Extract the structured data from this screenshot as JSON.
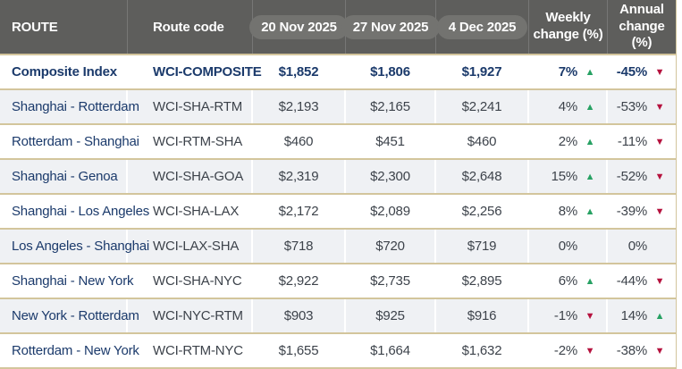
{
  "header": {
    "route": "ROUTE",
    "route_code": "Route code",
    "dates": [
      "20 Nov 2025",
      "27 Nov 2025",
      "4 Dec 2025"
    ],
    "weekly_line1": "Weekly",
    "weekly_line2": "change (%)",
    "annual_line1": "Annual",
    "annual_line2": "change (%)"
  },
  "colors": {
    "header_bg": "#5e5e5c",
    "date_pill_bg": "#737370",
    "separator_gold": "#d3c59c",
    "alt_row_bg": "#eff1f4",
    "navy_text": "#1b3a6b",
    "slate_text": "#3d434b",
    "trend_up_green": "#27a163",
    "trend_down_red": "#b5123e"
  },
  "chart_data": {
    "type": "table",
    "columns": [
      "ROUTE",
      "Route code",
      "20 Nov 2025",
      "27 Nov 2025",
      "4 Dec 2025",
      "Weekly change (%)",
      "Annual change (%)"
    ],
    "rows": [
      {
        "route": "Composite Index",
        "code": "WCI-COMPOSITE",
        "prices": [
          "$1,852",
          "$1,806",
          "$1,927"
        ],
        "weekly": {
          "value": "7%",
          "trend": "up"
        },
        "annual": {
          "value": "-45%",
          "trend": "down"
        },
        "emphasis": true
      },
      {
        "route": "Shanghai - Rotterdam",
        "code": "WCI-SHA-RTM",
        "prices": [
          "$2,193",
          "$2,165",
          "$2,241"
        ],
        "weekly": {
          "value": "4%",
          "trend": "up"
        },
        "annual": {
          "value": "-53%",
          "trend": "down"
        },
        "emphasis": false
      },
      {
        "route": "Rotterdam - Shanghai",
        "code": "WCI-RTM-SHA",
        "prices": [
          "$460",
          "$451",
          "$460"
        ],
        "weekly": {
          "value": "2%",
          "trend": "up"
        },
        "annual": {
          "value": "-11%",
          "trend": "down"
        },
        "emphasis": false
      },
      {
        "route": "Shanghai - Genoa",
        "code": "WCI-SHA-GOA",
        "prices": [
          "$2,319",
          "$2,300",
          "$2,648"
        ],
        "weekly": {
          "value": "15%",
          "trend": "up"
        },
        "annual": {
          "value": "-52%",
          "trend": "down"
        },
        "emphasis": false
      },
      {
        "route": "Shanghai - Los Angeles",
        "code": "WCI-SHA-LAX",
        "prices": [
          "$2,172",
          "$2,089",
          "$2,256"
        ],
        "weekly": {
          "value": "8%",
          "trend": "up"
        },
        "annual": {
          "value": "-39%",
          "trend": "down"
        },
        "emphasis": false
      },
      {
        "route": "Los Angeles - Shanghai",
        "code": "WCI-LAX-SHA",
        "prices": [
          "$718",
          "$720",
          "$719"
        ],
        "weekly": {
          "value": "0%",
          "trend": "flat"
        },
        "annual": {
          "value": "0%",
          "trend": "flat"
        },
        "emphasis": false
      },
      {
        "route": "Shanghai - New York",
        "code": "WCI-SHA-NYC",
        "prices": [
          "$2,922",
          "$2,735",
          "$2,895"
        ],
        "weekly": {
          "value": "6%",
          "trend": "up"
        },
        "annual": {
          "value": "-44%",
          "trend": "down"
        },
        "emphasis": false
      },
      {
        "route": "New York - Rotterdam",
        "code": "WCI-NYC-RTM",
        "prices": [
          "$903",
          "$925",
          "$916"
        ],
        "weekly": {
          "value": "-1%",
          "trend": "down"
        },
        "annual": {
          "value": "14%",
          "trend": "up"
        },
        "emphasis": false
      },
      {
        "route": "Rotterdam - New York",
        "code": "WCI-RTM-NYC",
        "prices": [
          "$1,655",
          "$1,664",
          "$1,632"
        ],
        "weekly": {
          "value": "-2%",
          "trend": "down"
        },
        "annual": {
          "value": "-38%",
          "trend": "down"
        },
        "emphasis": false
      }
    ]
  }
}
